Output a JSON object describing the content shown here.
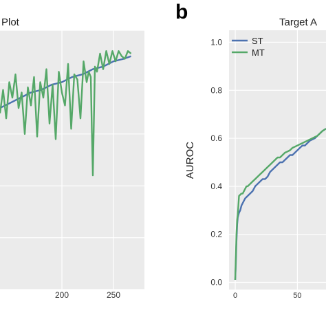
{
  "panel_b_letter": "b",
  "chart_data": [
    {
      "type": "line",
      "title": "Plot",
      "xlabel": "",
      "ylabel": "",
      "x_ticks": [
        200,
        250
      ],
      "xlim": [
        140,
        280
      ],
      "ylim": [
        0,
        1
      ],
      "grid": true,
      "background": "#EBEBEB",
      "series": [
        {
          "color": "#4C72B0",
          "x": [
            140,
            150,
            160,
            170,
            180,
            190,
            200,
            210,
            220,
            230,
            240,
            250,
            260,
            267
          ],
          "values": [
            0.7,
            0.72,
            0.74,
            0.76,
            0.77,
            0.79,
            0.8,
            0.82,
            0.83,
            0.85,
            0.86,
            0.88,
            0.89,
            0.9
          ]
        },
        {
          "color": "#55A868",
          "x": [
            140,
            143,
            146,
            149,
            152,
            155,
            158,
            161,
            164,
            167,
            170,
            173,
            176,
            179,
            182,
            185,
            188,
            191,
            194,
            197,
            200,
            203,
            206,
            209,
            212,
            215,
            218,
            221,
            224,
            226,
            228,
            229,
            230,
            232,
            234,
            237,
            240,
            243,
            246,
            249,
            252,
            255,
            258,
            261,
            264,
            267
          ],
          "values": [
            0.68,
            0.77,
            0.66,
            0.8,
            0.74,
            0.83,
            0.7,
            0.76,
            0.6,
            0.78,
            0.71,
            0.82,
            0.59,
            0.8,
            0.74,
            0.85,
            0.64,
            0.79,
            0.58,
            0.84,
            0.76,
            0.71,
            0.87,
            0.62,
            0.83,
            0.81,
            0.66,
            0.88,
            0.8,
            0.84,
            0.82,
            0.62,
            0.44,
            0.86,
            0.84,
            0.91,
            0.85,
            0.92,
            0.87,
            0.92,
            0.88,
            0.92,
            0.9,
            0.89,
            0.92,
            0.91
          ]
        }
      ]
    },
    {
      "type": "line",
      "title": "Target A",
      "xlabel": "",
      "ylabel": "AUROC",
      "x_ticks": [
        0,
        50
      ],
      "y_ticks": [
        "0.0",
        "0.2",
        "0.4",
        "0.6",
        "0.8",
        "1.0"
      ],
      "xlim": [
        -5,
        73
      ],
      "ylim": [
        -0.03,
        1.05
      ],
      "grid": true,
      "background": "#EBEBEB",
      "legend": "top-left",
      "series": [
        {
          "name": "ST",
          "color": "#4C72B0",
          "x": [
            0,
            0.5,
            1,
            1.5,
            2,
            3,
            4,
            5,
            6,
            7,
            8,
            9,
            10,
            12,
            14,
            16,
            18,
            20,
            22,
            24,
            26,
            28,
            30,
            32,
            34,
            36,
            38,
            40,
            42,
            44,
            46,
            48,
            50,
            52,
            54,
            56,
            58,
            60,
            62,
            64,
            66,
            68,
            70,
            73
          ],
          "values": [
            0.01,
            0.08,
            0.17,
            0.24,
            0.27,
            0.29,
            0.3,
            0.32,
            0.33,
            0.34,
            0.35,
            0.355,
            0.36,
            0.37,
            0.38,
            0.4,
            0.41,
            0.42,
            0.43,
            0.43,
            0.44,
            0.46,
            0.47,
            0.48,
            0.49,
            0.5,
            0.5,
            0.51,
            0.52,
            0.53,
            0.53,
            0.54,
            0.55,
            0.56,
            0.57,
            0.57,
            0.58,
            0.59,
            0.595,
            0.6,
            0.61,
            0.62,
            0.63,
            0.64
          ]
        },
        {
          "name": "MT",
          "color": "#55A868",
          "x": [
            0,
            0.5,
            1,
            1.5,
            2,
            3,
            4,
            5,
            6,
            7,
            8,
            9,
            10,
            12,
            14,
            16,
            18,
            20,
            22,
            24,
            26,
            28,
            30,
            32,
            34,
            36,
            38,
            40,
            42,
            44,
            46,
            48,
            50,
            52,
            54,
            56,
            58,
            60,
            62,
            64,
            66,
            68,
            70,
            73
          ],
          "values": [
            0.01,
            0.1,
            0.2,
            0.26,
            0.28,
            0.36,
            0.365,
            0.37,
            0.37,
            0.38,
            0.39,
            0.4,
            0.4,
            0.41,
            0.42,
            0.43,
            0.44,
            0.45,
            0.46,
            0.47,
            0.48,
            0.49,
            0.5,
            0.51,
            0.52,
            0.52,
            0.53,
            0.54,
            0.545,
            0.55,
            0.56,
            0.565,
            0.57,
            0.575,
            0.58,
            0.585,
            0.59,
            0.595,
            0.6,
            0.605,
            0.61,
            0.62,
            0.63,
            0.64
          ]
        }
      ]
    }
  ]
}
